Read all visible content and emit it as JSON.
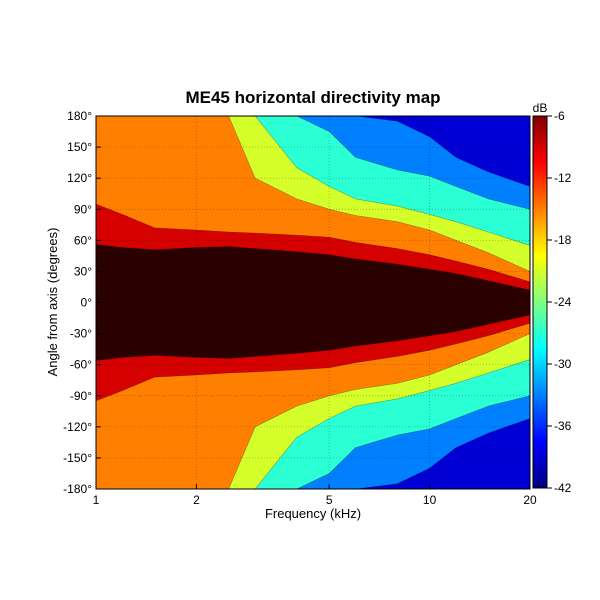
{
  "chart_data": {
    "type": "heatmap",
    "title": "ME45 horizontal directivity map",
    "xlabel": "Frequency (kHz)",
    "ylabel": "Angle from axis (degrees)",
    "x_scale": "log",
    "xlim": [
      1,
      20
    ],
    "ylim": [
      -180,
      180
    ],
    "x_ticks": [
      1,
      2,
      5,
      10,
      20
    ],
    "x_tick_labels": [
      "1",
      "2",
      "5",
      "10",
      "20"
    ],
    "y_ticks": [
      180,
      150,
      120,
      90,
      60,
      30,
      0,
      -30,
      -60,
      -90,
      -120,
      -150,
      -180
    ],
    "y_tick_labels": [
      "180°",
      "150°",
      "120°",
      "90°",
      "60°",
      "30°",
      "0°",
      "-30°",
      "-60°",
      "-90°",
      "-120°",
      "-150°",
      "-180°"
    ],
    "grid": true,
    "colorbar": {
      "label": "dB",
      "range": [
        -42,
        -6
      ],
      "ticks": [
        -6,
        -12,
        -18,
        -24,
        -30,
        -36,
        -42
      ],
      "tick_labels": [
        "-6",
        "-12",
        "-18",
        "-24",
        "-30",
        "-36",
        "-42"
      ],
      "colormap": "jet"
    },
    "contour_levels_db": [
      -6,
      -12,
      -18,
      -24,
      -30,
      -36
    ],
    "contours": {
      "frequencies_khz": [
        1,
        1.2,
        1.5,
        2,
        2.5,
        3,
        4,
        5,
        6,
        8,
        10,
        12,
        15,
        20
      ],
      "angle_at_-6dB": [
        56,
        53,
        51,
        53,
        54,
        52,
        49,
        46,
        42,
        37,
        32,
        28,
        21,
        12
      ],
      "angle_at_-12dB": [
        95,
        85,
        72,
        70,
        68,
        67,
        65,
        63,
        58,
        52,
        46,
        40,
        32,
        20
      ],
      "angle_at_-18dB": [
        180,
        180,
        180,
        180,
        180,
        120,
        100,
        90,
        84,
        78,
        70,
        60,
        48,
        30
      ],
      "angle_at_-24dB": [
        180,
        180,
        180,
        180,
        180,
        180,
        130,
        112,
        100,
        93,
        85,
        78,
        68,
        55
      ],
      "angle_at_-30dB": [
        180,
        180,
        180,
        180,
        180,
        180,
        180,
        165,
        140,
        128,
        122,
        112,
        100,
        90
      ],
      "angle_at_-36dB": [
        180,
        180,
        180,
        180,
        180,
        180,
        180,
        180,
        180,
        175,
        160,
        140,
        126,
        112
      ]
    }
  }
}
